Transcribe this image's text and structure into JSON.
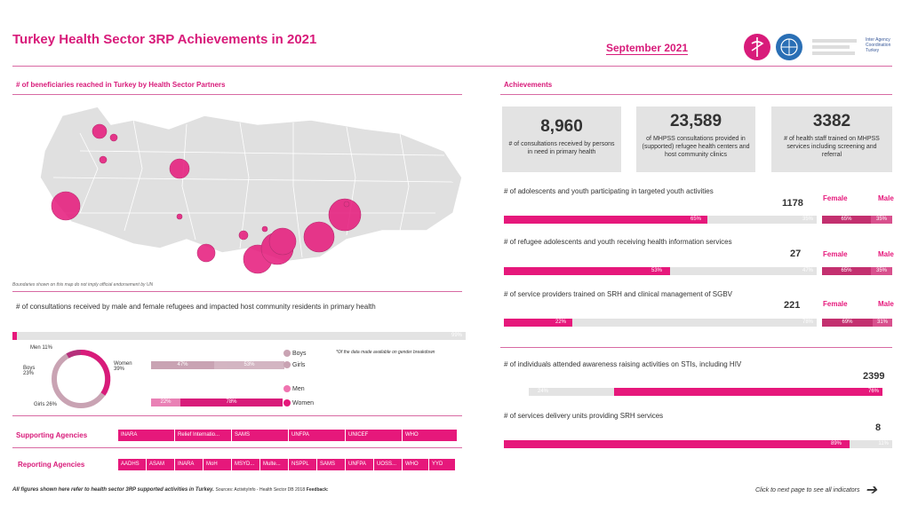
{
  "header": {
    "title": "Turkey Health Sector 3RP Achievements in 2021",
    "month": "September 2021",
    "logo_text": "Inter Agency Coordination Turkey"
  },
  "map_section": {
    "title": "# of beneficiaries reached in Turkey by Health Sector Partners",
    "disclaimer": "Boundaries shown on this map do not imply official endorsement by UN"
  },
  "consult_section": {
    "title": "# of consultations received by male and female refugees and impacted host community residents in primary health",
    "top_bar_label": "99%",
    "top_bar_fraction": 0.01,
    "donut": {
      "men": "Men 11%",
      "women": "Women 39%",
      "boys": "Boys 23%",
      "girls": "Girls 26%"
    },
    "note": "*Of the data made available on gender breakdown",
    "boys_girls_bar": {
      "left": "47%",
      "right": "53%"
    },
    "men_women_bar": {
      "left": "22%",
      "right": "78%"
    },
    "legend": {
      "boys": "Boys",
      "girls": "Girls",
      "men": "Men",
      "women": "Women"
    }
  },
  "achievements": {
    "title": "Achievements",
    "kpis": [
      {
        "value": "8,960",
        "label": "# of consultations received by persons in need in primary health"
      },
      {
        "value": "23,589",
        "label": "of MHPSS consultations provided in (supported) refugee health centers and host community clinics"
      },
      {
        "value": "3382",
        "label": "# of health staff trained on MHPSS services including screening and referral"
      }
    ],
    "indicators": [
      {
        "label": "# of adolescents and youth participating in targeted youth activities",
        "value": "1178",
        "pct": "65%",
        "frac": 0.65,
        "rest": "35%",
        "female": "65%",
        "male": "35%"
      },
      {
        "label": "# of refugee adolescents and youth receiving health information services",
        "value": "27",
        "pct": "53%",
        "frac": 0.53,
        "rest": "47%",
        "female": "65%",
        "male": "35%"
      },
      {
        "label": "# of service providers trained on SRH and clinical management of SGBV",
        "value": "221",
        "pct": "22%",
        "frac": 0.22,
        "rest": "78%",
        "female": "69%",
        "male": "31%"
      }
    ],
    "female_label": "Female",
    "male_label": "Male",
    "hiv": {
      "label": "# of individuals attended awareness raising activities on STIs, including HIV",
      "value": "2399",
      "left": "24%",
      "right": "76%",
      "frac": 0.76
    },
    "srh": {
      "label": "# of services delivery units providing SRH services",
      "value": "8",
      "pct": "89%",
      "rest": "11%",
      "frac": 0.89
    }
  },
  "agencies": {
    "supporting_label": "Supporting Agencies",
    "supporting": [
      "INARA",
      "Relief Internatio...",
      "SAMS",
      "UNFPA",
      "UNICEF",
      "WHO"
    ],
    "reporting_label": "Reporting Agencies",
    "reporting": [
      "AADHS",
      "ASAM",
      "INARA",
      "MoH",
      "MSYD...",
      "Multe...",
      "NSPPL",
      "SAMS",
      "UNFPA",
      "UOSS...",
      "WHO",
      "YYD"
    ]
  },
  "footer": {
    "note": "All figures shown here refer to health sector 3RP supported activities in Turkey.",
    "sources": "Sources: ActivityInfo - Health Sector DB 2018",
    "feedback": "Feedback: ",
    "next": "Click to next page to see all indicators"
  },
  "colors": {
    "accent": "#e6187b",
    "grey": "#e3e3e3",
    "light_pink": "#c9a3b3"
  }
}
